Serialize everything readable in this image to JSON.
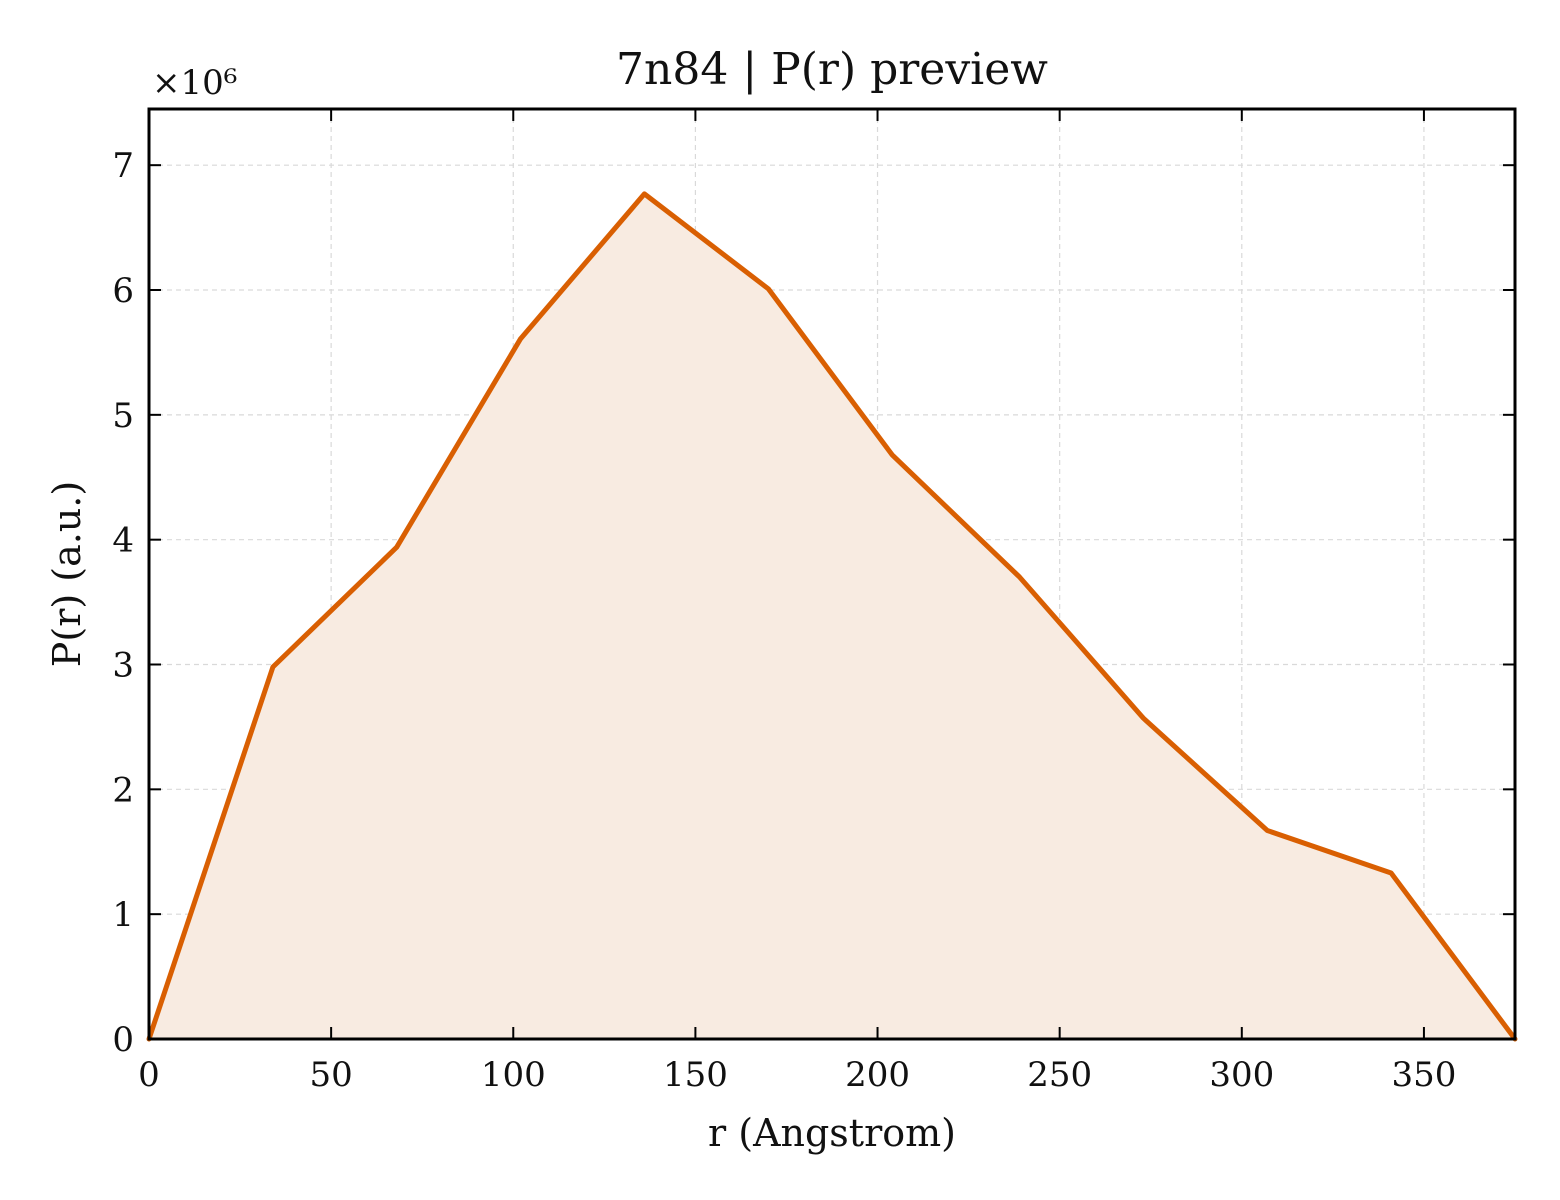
{
  "chart_data": {
    "type": "area",
    "title": "7n84 | P(r) preview",
    "xlabel": "r (Angstrom)",
    "ylabel": "P(r) (a.u.)",
    "y_multiplier": "×10⁶",
    "xlim": [
      0,
      375
    ],
    "ylim": [
      0,
      7.45
    ],
    "y_scale_factor": 1000000,
    "x_ticks": [
      0,
      50,
      100,
      150,
      200,
      250,
      300,
      350
    ],
    "x_tick_labels": [
      "0",
      "50",
      "100",
      "150",
      "200",
      "250",
      "300",
      "350"
    ],
    "y_ticks": [
      0,
      1,
      2,
      3,
      4,
      5,
      6,
      7
    ],
    "y_tick_labels": [
      "0",
      "1",
      "2",
      "3",
      "4",
      "5",
      "6",
      "7"
    ],
    "grid": true,
    "series": [
      {
        "x": [
          0,
          34,
          68,
          102,
          136,
          170,
          204,
          239,
          273,
          307,
          341,
          375
        ],
        "y": [
          0,
          2.98,
          3.94,
          5.61,
          6.77,
          6.01,
          4.68,
          3.7,
          2.57,
          1.67,
          1.33,
          0
        ]
      }
    ],
    "colors": {
      "line": "#d95f02",
      "fill": "#f8ebe1",
      "grid": "#d9d9d9",
      "axes": "#000000"
    }
  }
}
